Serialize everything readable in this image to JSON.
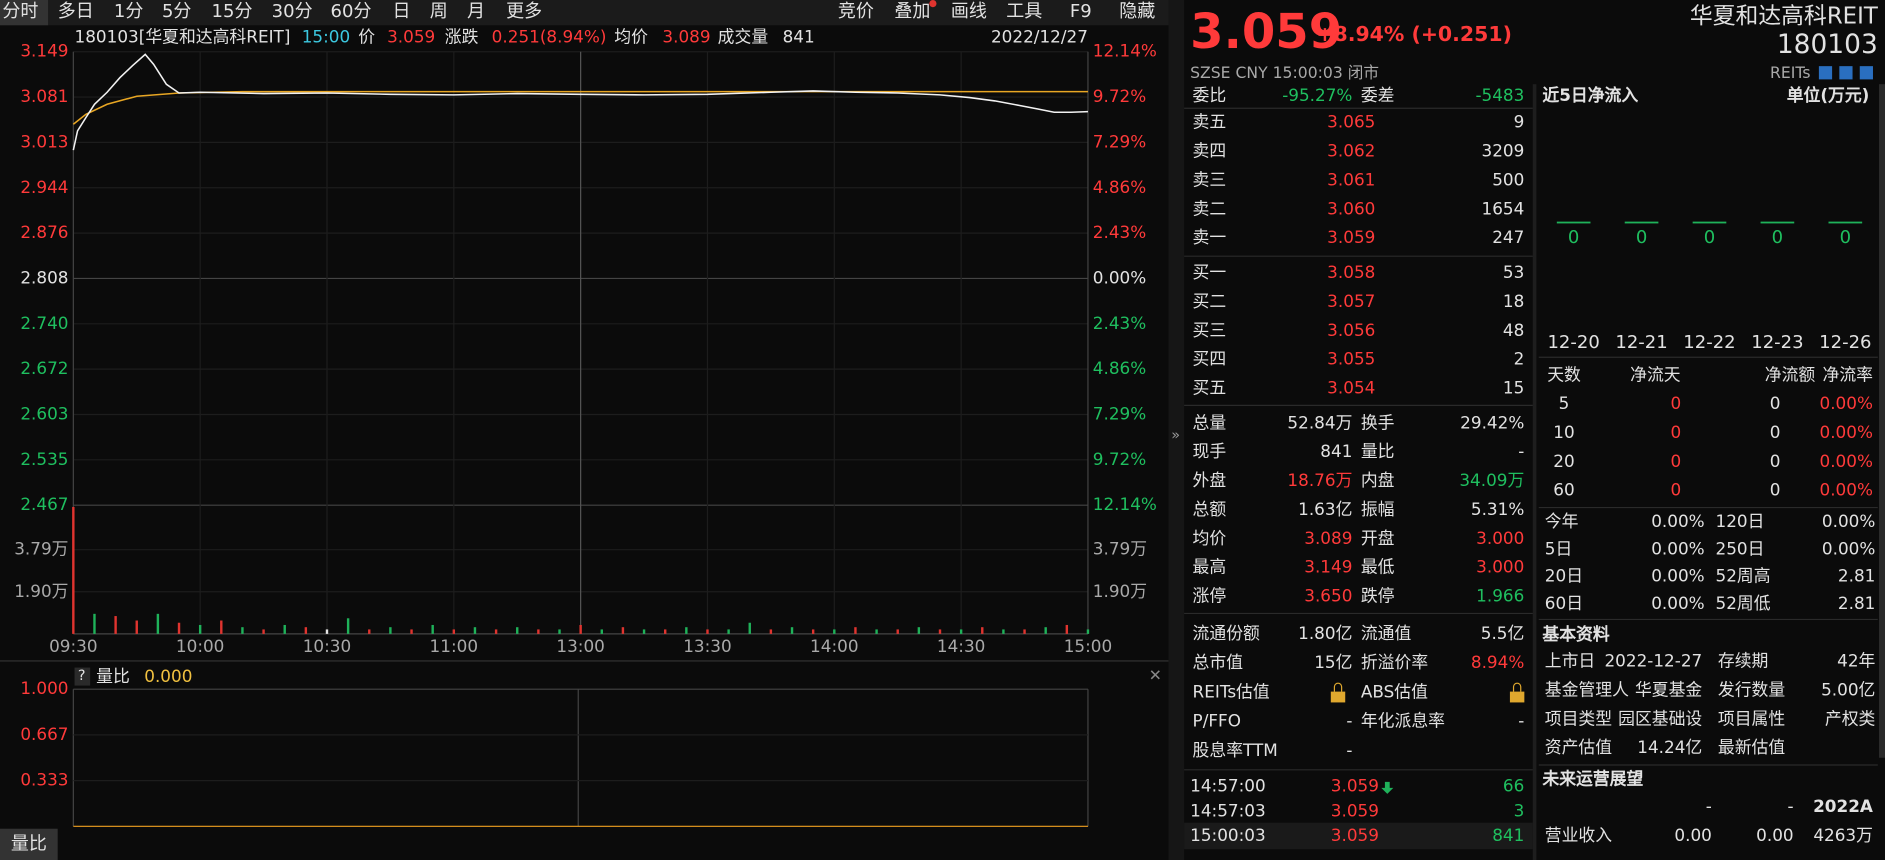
{
  "toolbar": {
    "periods": [
      "分时",
      "多日",
      "1分",
      "5分",
      "15分",
      "30分",
      "60分",
      "日",
      "周",
      "月",
      "更多"
    ],
    "tools": [
      "竞价",
      "叠加",
      "画线",
      "工具",
      "F9",
      "隐藏"
    ]
  },
  "chart_header": {
    "symbol": "180103[华夏和达高科REIT]",
    "time": "15:00",
    "price_label": "价",
    "price": "3.059",
    "change_label": "涨跌",
    "change": "0.251(8.94%)",
    "avg_label": "均价",
    "avg": "3.089",
    "volume_label": "成交量",
    "volume": "841",
    "date": "2022/12/27"
  },
  "price_axis": {
    "left": [
      "3.149",
      "3.081",
      "3.013",
      "2.944",
      "2.876",
      "2.808",
      "2.740",
      "2.672",
      "2.603",
      "2.535",
      "2.467"
    ],
    "right": [
      "12.14%",
      "9.72%",
      "7.29%",
      "4.86%",
      "2.43%",
      "0.00%",
      "2.43%",
      "4.86%",
      "7.29%",
      "9.72%",
      "12.14%"
    ]
  },
  "volume_axis": {
    "left": [
      "3.79万",
      "1.90万"
    ],
    "right": [
      "3.79万",
      "1.90万"
    ]
  },
  "time_axis": [
    "09:30",
    "10:00",
    "10:30",
    "11:00",
    "13:00",
    "13:30",
    "14:00",
    "14:30",
    "15:00"
  ],
  "intraday": {
    "xlim": [
      0,
      240
    ],
    "ylim": [
      2.467,
      3.149
    ],
    "vlim": [
      0,
      5.78
    ],
    "price_color": "#f2f2f2",
    "avg_color": "#e8a623",
    "price_minutes": [
      0,
      1,
      3,
      5,
      8,
      11,
      14,
      17,
      19,
      22,
      25,
      30,
      45,
      60,
      75,
      90,
      105,
      120,
      135,
      150,
      165,
      175,
      185,
      195,
      205,
      212,
      218,
      224,
      228,
      232,
      236,
      240
    ],
    "price": [
      3.001,
      3.03,
      3.05,
      3.07,
      3.088,
      3.11,
      3.128,
      3.145,
      3.13,
      3.1,
      3.087,
      3.088,
      3.086,
      3.087,
      3.085,
      3.084,
      3.086,
      3.085,
      3.084,
      3.085,
      3.088,
      3.09,
      3.088,
      3.087,
      3.084,
      3.08,
      3.075,
      3.068,
      3.063,
      3.058,
      3.058,
      3.059
    ],
    "avg_minutes": [
      0,
      3,
      8,
      15,
      25,
      40,
      60,
      240
    ],
    "avg": [
      3.04,
      3.055,
      3.07,
      3.082,
      3.087,
      3.089,
      3.089,
      3.089
    ],
    "volume_minutes": [
      0,
      5,
      10,
      15,
      20,
      25,
      30,
      35,
      40,
      45,
      50,
      55,
      60,
      65,
      70,
      75,
      80,
      85,
      90,
      95,
      100,
      105,
      110,
      115,
      120,
      125,
      130,
      135,
      140,
      145,
      150,
      155,
      160,
      165,
      170,
      175,
      180,
      185,
      190,
      195,
      200,
      205,
      210,
      215,
      220,
      225,
      230,
      235,
      240
    ],
    "volume": [
      5.7,
      0.9,
      0.8,
      0.6,
      0.9,
      0.5,
      0.4,
      0.6,
      0.3,
      0.2,
      0.4,
      0.3,
      0.2,
      0.7,
      0.2,
      0.3,
      0.2,
      0.4,
      0.2,
      0.3,
      0.2,
      0.3,
      0.2,
      0.2,
      0.4,
      0.2,
      0.3,
      0.2,
      0.2,
      0.3,
      0.2,
      0.2,
      0.5,
      0.2,
      0.3,
      0.2,
      0.2,
      0.3,
      0.2,
      0.2,
      0.3,
      0.2,
      0.2,
      0.3,
      0.2,
      0.2,
      0.3,
      0.4,
      0.2
    ],
    "volume_colors": [
      "r",
      "g",
      "r",
      "r",
      "g",
      "r",
      "g",
      "r",
      "g",
      "r",
      "g",
      "r",
      "w",
      "g",
      "r",
      "g",
      "r",
      "g",
      "r",
      "g",
      "r",
      "g",
      "r",
      "g",
      "r",
      "g",
      "r",
      "g",
      "r",
      "g",
      "r",
      "g",
      "g",
      "r",
      "g",
      "r",
      "g",
      "r",
      "g",
      "r",
      "g",
      "r",
      "g",
      "r",
      "g",
      "r",
      "g",
      "r",
      "g"
    ],
    "palette": {
      "r": "#e0342f",
      "g": "#1fb25a",
      "w": "#e6e6e6"
    }
  },
  "indicator": {
    "help": "?",
    "name": "量比",
    "value": "0.000",
    "ticks": [
      "1.000",
      "0.667",
      "0.333"
    ]
  },
  "bottom_tab": "量比",
  "quote": {
    "price": "3.059",
    "change": "+8.94% (+0.251)",
    "meta": "SZSE  CNY  15:00:03  闭市",
    "name": "华夏和达高科REIT",
    "code": "180103",
    "tag": "REITs"
  },
  "order_ratio": [
    {
      "label": "委比",
      "value": "-95.27%",
      "tone": "down"
    },
    {
      "label": "委差",
      "value": "-5483",
      "tone": "down"
    }
  ],
  "asks": [
    {
      "label": "卖五",
      "price": "3.065",
      "volume": "9"
    },
    {
      "label": "卖四",
      "price": "3.062",
      "volume": "3209"
    },
    {
      "label": "卖三",
      "price": "3.061",
      "volume": "500"
    },
    {
      "label": "卖二",
      "price": "3.060",
      "volume": "1654"
    },
    {
      "label": "卖一",
      "price": "3.059",
      "volume": "247"
    }
  ],
  "bids": [
    {
      "label": "买一",
      "price": "3.058",
      "volume": "53"
    },
    {
      "label": "买二",
      "price": "3.057",
      "volume": "18"
    },
    {
      "label": "买三",
      "price": "3.056",
      "volume": "48"
    },
    {
      "label": "买四",
      "price": "3.055",
      "volume": "2"
    },
    {
      "label": "买五",
      "price": "3.054",
      "volume": "15"
    }
  ],
  "stats": [
    [
      {
        "label": "总量",
        "value": "52.84万"
      },
      {
        "label": "换手",
        "value": "29.42%"
      }
    ],
    [
      {
        "label": "现手",
        "value": "841"
      },
      {
        "label": "量比",
        "value": "-"
      }
    ],
    [
      {
        "label": "外盘",
        "value": "18.76万",
        "tone": "up"
      },
      {
        "label": "内盘",
        "value": "34.09万",
        "tone": "down"
      }
    ],
    [
      {
        "label": "总额",
        "value": "1.63亿"
      },
      {
        "label": "振幅",
        "value": "5.31%"
      }
    ],
    [
      {
        "label": "均价",
        "value": "3.089",
        "tone": "up"
      },
      {
        "label": "开盘",
        "value": "3.000",
        "tone": "up"
      }
    ],
    [
      {
        "label": "最高",
        "value": "3.149",
        "tone": "up"
      },
      {
        "label": "最低",
        "value": "3.000",
        "tone": "up"
      }
    ],
    [
      {
        "label": "涨停",
        "value": "3.650",
        "tone": "up"
      },
      {
        "label": "跌停",
        "value": "1.966",
        "tone": "down"
      }
    ]
  ],
  "reit": [
    [
      {
        "label": "流通份额",
        "value": "1.80亿"
      },
      {
        "label": "流通值",
        "value": "5.5亿"
      }
    ],
    [
      {
        "label": "总市值",
        "value": "15亿"
      },
      {
        "label": "折溢价率",
        "value": "8.94%",
        "tone": "up"
      }
    ],
    [
      {
        "label": "REITs估值"
      },
      {
        "label": "ABS估值"
      }
    ],
    [
      {
        "label": "P/FFO",
        "value": "-"
      },
      {
        "label": "年化派息率",
        "value": "-"
      }
    ],
    [
      {
        "label": "股息率TTM",
        "value": "-"
      }
    ]
  ],
  "trades": [
    {
      "time": "14:57:00",
      "price": "3.059",
      "volume": "66"
    },
    {
      "time": "14:57:03",
      "price": "3.059",
      "volume": "3"
    },
    {
      "time": "15:00:03",
      "price": "3.059",
      "volume": "841"
    }
  ],
  "flow": {
    "title": "近5日净流入",
    "unit": "单位(万元)",
    "dates": [
      "12-20",
      "12-21",
      "12-22",
      "12-23",
      "12-26"
    ],
    "values": [
      0,
      0,
      0,
      0,
      0
    ],
    "color": "#1fb25a"
  },
  "flow_table": {
    "header": [
      "天数",
      "净流天",
      "净流额",
      "净流率"
    ],
    "rows": [
      [
        "5",
        "0",
        "0",
        "0.00%"
      ],
      [
        "10",
        "0",
        "0",
        "0.00%"
      ],
      [
        "20",
        "0",
        "0",
        "0.00%"
      ],
      [
        "60",
        "0",
        "0",
        "0.00%"
      ]
    ]
  },
  "periods": [
    [
      {
        "label": "今年",
        "value": "0.00%"
      },
      {
        "label": "120日",
        "value": "0.00%"
      }
    ],
    [
      {
        "label": "5日",
        "value": "0.00%"
      },
      {
        "label": "250日",
        "value": "0.00%"
      }
    ],
    [
      {
        "label": "20日",
        "value": "0.00%"
      },
      {
        "label": "52周高",
        "value": "2.81"
      }
    ],
    [
      {
        "label": "60日",
        "value": "0.00%"
      },
      {
        "label": "52周低",
        "value": "2.81"
      }
    ]
  ],
  "basic": {
    "title": "基本资料",
    "rows": [
      [
        {
          "label": "上市日",
          "value": "2022-12-27"
        },
        {
          "label": "存续期",
          "value": "42年"
        }
      ],
      [
        {
          "label": "基金管理人",
          "value": "华夏基金"
        },
        {
          "label": "发行数量",
          "value": "5.00亿"
        }
      ],
      [
        {
          "label": "项目类型",
          "value": "园区基础设"
        },
        {
          "label": "项目属性",
          "value": "产权类"
        }
      ],
      [
        {
          "label": "资产估值",
          "value": "14.24亿"
        },
        {
          "label": "最新估值"
        }
      ]
    ]
  },
  "outlook": {
    "title": "未来运营展望",
    "columns": [
      "-",
      "-",
      "2022A"
    ],
    "rows": [
      [
        "营业收入",
        "0.00",
        "0.00",
        "4263万"
      ]
    ]
  }
}
